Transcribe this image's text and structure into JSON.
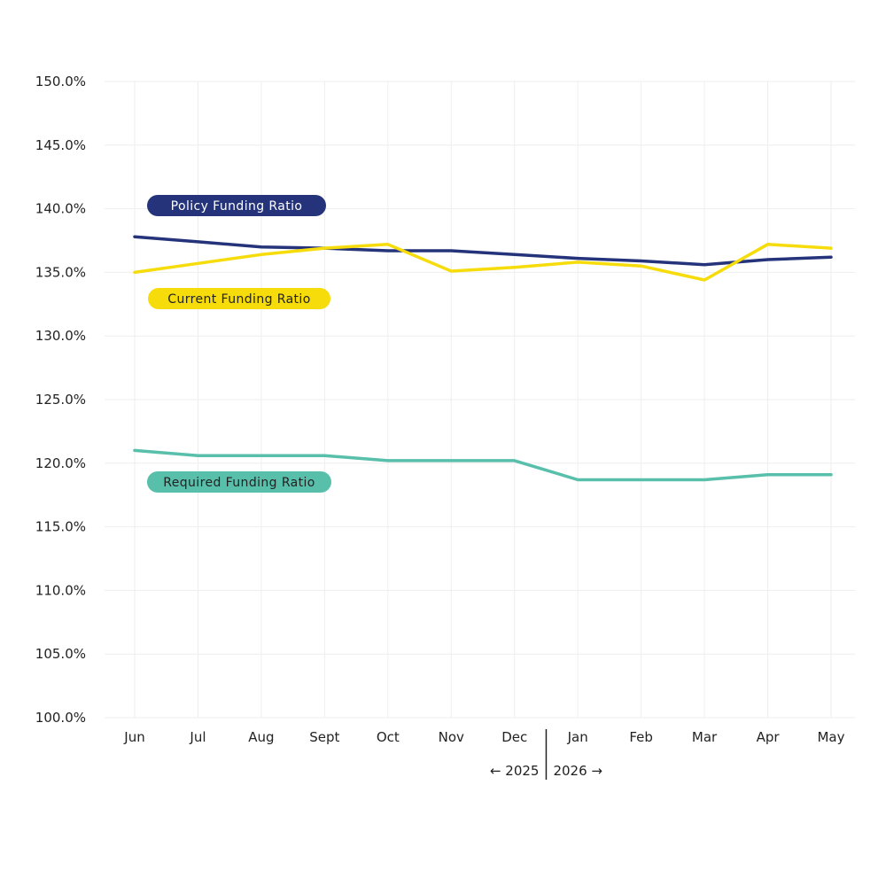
{
  "chart_data": {
    "type": "line",
    "title": "",
    "xlabel": "",
    "ylabel": "",
    "categories": [
      "Jun",
      "Jul",
      "Aug",
      "Sept",
      "Oct",
      "Nov",
      "Dec",
      "Jan",
      "Feb",
      "Mar",
      "Apr",
      "May"
    ],
    "ylim": [
      100,
      150
    ],
    "y_ticks": [
      "100.0%",
      "105.0%",
      "110.0%",
      "115.0%",
      "120.0%",
      "125.0%",
      "130.0%",
      "135.0%",
      "140.0%",
      "145.0%",
      "150.0%"
    ],
    "grid": true,
    "year_divider": {
      "after_category": "Dec",
      "left_label": "← 2025",
      "right_label": "2026 →"
    },
    "series": [
      {
        "name": "Policy Funding Ratio",
        "color": "#25347a",
        "label_text_color": "#ffffff",
        "values": [
          137.8,
          137.4,
          137.0,
          136.9,
          136.7,
          136.7,
          136.4,
          136.1,
          135.9,
          135.6,
          136.0,
          136.2
        ]
      },
      {
        "name": "Current Funding Ratio",
        "color": "#f7dc0c",
        "label_text_color": "#222222",
        "values": [
          135.0,
          135.7,
          136.4,
          136.9,
          137.2,
          135.1,
          135.4,
          135.8,
          135.5,
          134.4,
          137.2,
          136.9
        ]
      },
      {
        "name": "Required Funding Ratio",
        "color": "#58bfab",
        "label_text_color": "#222222",
        "values": [
          121.0,
          120.6,
          120.6,
          120.6,
          120.2,
          120.2,
          120.2,
          118.7,
          118.7,
          118.7,
          119.1,
          119.1
        ]
      }
    ]
  }
}
